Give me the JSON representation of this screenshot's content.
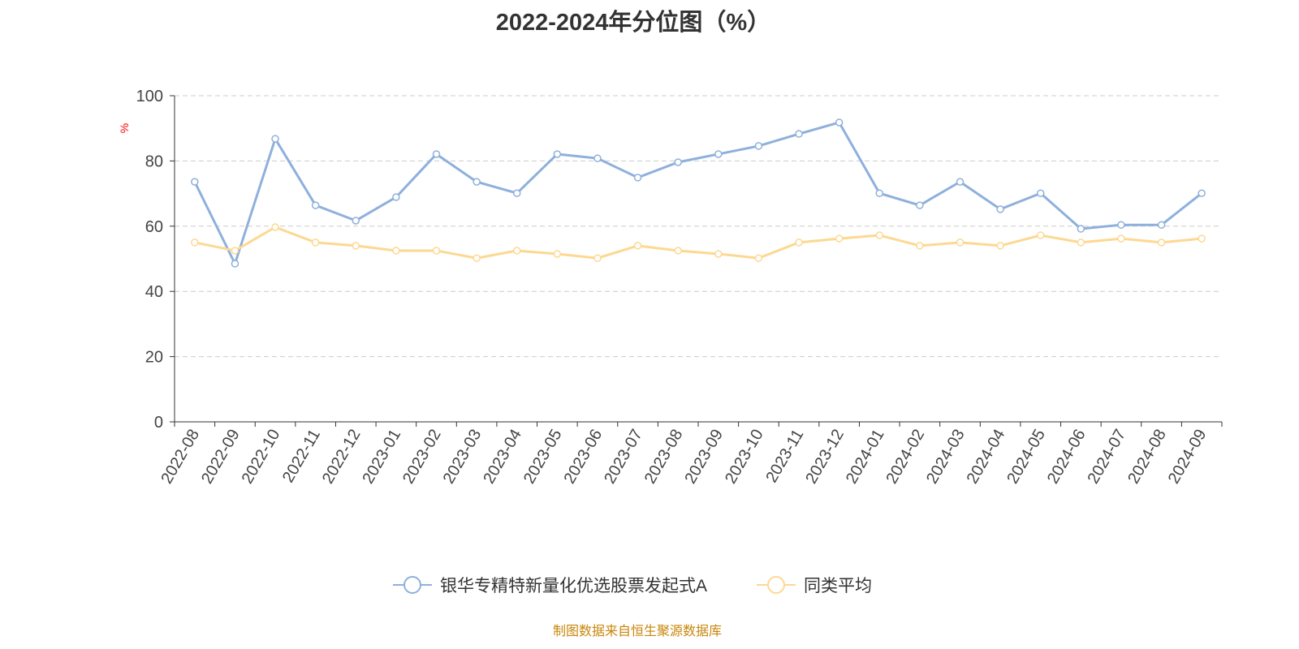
{
  "chart_data": {
    "type": "line",
    "title": "2022-2024年分位图（%）",
    "ylabel": "%",
    "xlabel": "",
    "ylim": [
      0,
      100
    ],
    "yticks": [
      0,
      20,
      40,
      60,
      80,
      100
    ],
    "grid": true,
    "legend_position": "bottom",
    "categories": [
      "2022-08",
      "2022-09",
      "2022-10",
      "2022-11",
      "2022-12",
      "2023-01",
      "2023-02",
      "2023-03",
      "2023-04",
      "2023-05",
      "2023-06",
      "2023-07",
      "2023-08",
      "2023-09",
      "2023-10",
      "2023-11",
      "2023-12",
      "2024-01",
      "2024-02",
      "2024-03",
      "2024-04",
      "2024-05",
      "2024-06",
      "2024-07",
      "2024-08",
      "2024-09"
    ],
    "series": [
      {
        "name": "银华专精特新量化优选股票发起式A",
        "color": "#8eb0dc",
        "values": [
          73.6,
          48.5,
          86.8,
          66.4,
          61.7,
          68.9,
          82.1,
          73.6,
          70.1,
          82.1,
          80.8,
          74.9,
          79.6,
          82.1,
          84.6,
          88.3,
          91.8,
          70.1,
          66.4,
          73.6,
          65.2,
          70.1,
          59.2,
          60.4,
          60.4,
          70.1
        ]
      },
      {
        "name": "同类平均",
        "color": "#fdd891",
        "values": [
          55.0,
          52.5,
          59.7,
          55.0,
          54.0,
          52.5,
          52.5,
          50.2,
          52.5,
          51.5,
          50.2,
          54.0,
          52.5,
          51.5,
          50.2,
          55.0,
          56.2,
          57.2,
          54.0,
          55.0,
          54.0,
          57.2,
          55.0,
          56.2,
          55.0,
          56.2
        ]
      }
    ]
  },
  "source": "制图数据来自恒生聚源数据库"
}
